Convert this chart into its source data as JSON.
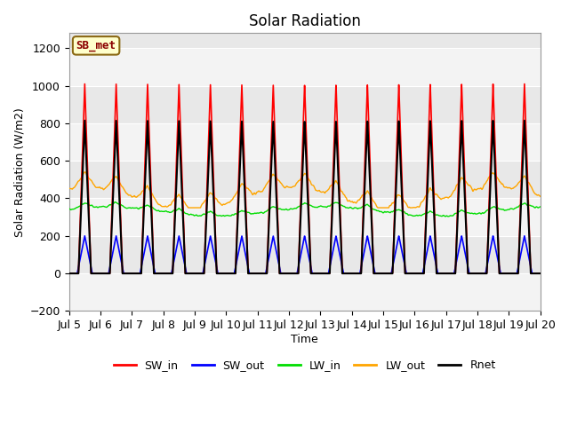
{
  "title": "Solar Radiation",
  "ylabel": "Solar Radiation (W/m2)",
  "xlabel": "Time",
  "ylim": [
    -200,
    1280
  ],
  "xlim": [
    0,
    15
  ],
  "background_color": "#e8e8e8",
  "annotation_text": "SB_met",
  "annotation_color": "#8B0000",
  "annotation_bg": "#ffffcc",
  "annotation_border": "#8B6914",
  "days": 15,
  "legend_labels": [
    "SW_in",
    "SW_out",
    "LW_in",
    "LW_out",
    "Rnet"
  ],
  "legend_colors": [
    "#ff0000",
    "#0000ff",
    "#00dd00",
    "#ffa500",
    "#000000"
  ],
  "yticks": [
    -200,
    0,
    200,
    400,
    600,
    800,
    1000,
    1200
  ]
}
